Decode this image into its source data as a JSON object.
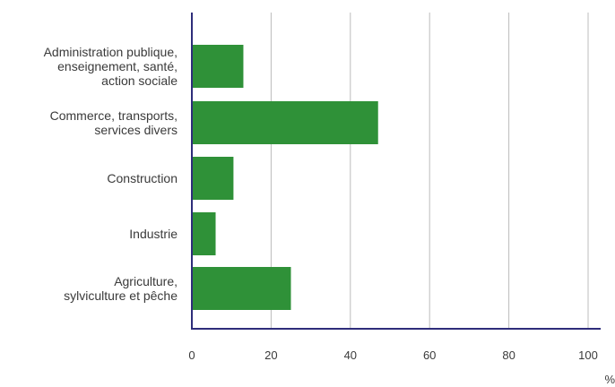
{
  "chart_data": {
    "type": "bar",
    "orientation": "horizontal",
    "categories": [
      "Administration publique,\nenseignement, santé,\naction sociale",
      "Commerce, transports,\nservices divers",
      "Construction",
      "Industrie",
      "Agriculture,\nsylviculture et pêche"
    ],
    "values": [
      13,
      47,
      10.5,
      6,
      25
    ],
    "title": "",
    "xlabel": "%",
    "ylabel": "",
    "xlim": [
      0,
      100
    ],
    "xticks": [
      0,
      20,
      40,
      60,
      80,
      100
    ],
    "grid": "vertical",
    "legend": "none",
    "colors": {
      "bar": "#2f9138",
      "axis": "#2e2d7a",
      "grid": "#bcbcbc",
      "text": "#3a3a3a"
    }
  }
}
